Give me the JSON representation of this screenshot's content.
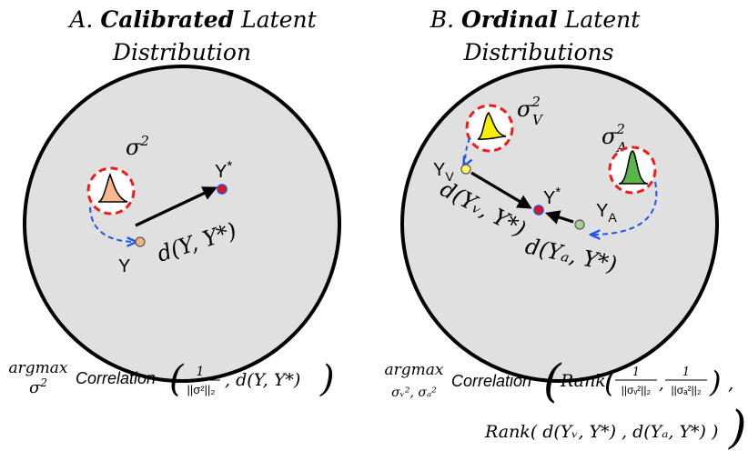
{
  "panel_a": {
    "title_prefix": "A.",
    "title_bold": "Calibrated",
    "title_rest": "Latent",
    "title_line2": "Distribution",
    "sigma_base": "σ",
    "sigma_sup": "2",
    "point_y": "Y",
    "point_ystar_base": "Y",
    "point_ystar_sup": "*",
    "distance_label": "d(Y, Y*)",
    "formula": {
      "op_top": "argmax",
      "op_bottom_base": "σ",
      "op_bottom_sup": "2",
      "func": "Correlation",
      "frac_num": "1",
      "frac_den": "||σ²||₂",
      "arg2": ", d(Y, Y*)"
    }
  },
  "panel_b": {
    "title_prefix": "B.",
    "title_bold": "Ordinal",
    "title_rest": "Latent",
    "title_line2": "Distributions",
    "sigma_v_base": "σ",
    "sigma_v_sup": "2",
    "sigma_v_sub": "V",
    "sigma_a_base": "σ",
    "sigma_a_sup": "2",
    "sigma_a_sub": "A",
    "point_yv_base": "Y",
    "point_yv_sub": "V",
    "point_ya_base": "Y",
    "point_ya_sub": "A",
    "point_ystar_base": "Y",
    "point_ystar_sup": "*",
    "distance_v_label": "d(Yᵥ, Y*)",
    "distance_a_label": "d(Yₐ, Y*)",
    "formula": {
      "op_top": "argmax",
      "op_bottom": "σᵥ², σₐ²",
      "func": "Correlation",
      "rank1": "Rank",
      "frac1_num": "1",
      "frac1_den": "||σᵥ²||₂",
      "frac2_num": "1",
      "frac2_den": "||σₐ²||₂",
      "comma": ",",
      "line2": "Rank( d(Yᵥ, Y*) , d(Yₐ, Y*) )"
    }
  },
  "colors": {
    "circle_fill": "#e0e0e0",
    "circle_stroke": "#000000",
    "dashed_red": "#ee1c1c",
    "dashed_blue": "#2156e8",
    "orange_dist": "#f7b88e",
    "yellow_dist": "#f5f000",
    "green_dist": "#5ab64a",
    "point_y": "#f4b183",
    "point_ystar": "#e01414",
    "point_ystar_ring": "#2d4fd6",
    "point_yv": "#ffff66",
    "point_ya": "#a9d18e"
  }
}
